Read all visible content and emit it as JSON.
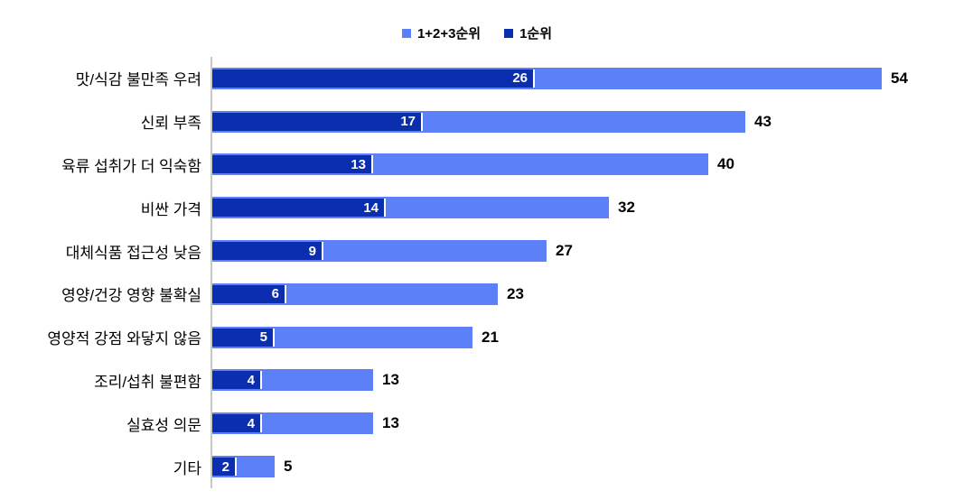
{
  "colors": {
    "total_series": "#5b80f8",
    "first_series": "#0b2eae",
    "axis_line": "#c8c8c8",
    "inner_label": "#ffffff",
    "outer_label": "#000000",
    "gap_between_segments": "#ffffff"
  },
  "legend": {
    "items": [
      {
        "label": "1+2+3순위",
        "color": "#5b80f8"
      },
      {
        "label": "1순위",
        "color": "#0b2eae"
      }
    ]
  },
  "chart_data": {
    "type": "bar",
    "orientation": "horizontal",
    "title": "",
    "xlabel": "",
    "ylabel": "",
    "xlim": [
      0,
      58
    ],
    "grid": false,
    "legend_position": "top-center",
    "value_labels": {
      "first_rank": "white bold inside right end of dark segment",
      "total": "black bold outside right of light bar"
    },
    "categories": [
      "맛/식감 불만족 우려",
      "신뢰 부족",
      "육류 섭취가 더 익숙함",
      "비싼 가격",
      "대체식품 접근성 낮음",
      "영양/건강 영향 불확실",
      "영양적 강점 와닿지 않음",
      "조리/섭취 불편함",
      "실효성 의문",
      "기타"
    ],
    "series": [
      {
        "name": "1순위",
        "color": "#0b2eae",
        "values": [
          26,
          17,
          13,
          14,
          9,
          6,
          5,
          4,
          4,
          2
        ]
      },
      {
        "name": "1+2+3순위",
        "color": "#5b80f8",
        "values": [
          54,
          43,
          40,
          32,
          27,
          23,
          21,
          13,
          13,
          5
        ]
      }
    ]
  }
}
